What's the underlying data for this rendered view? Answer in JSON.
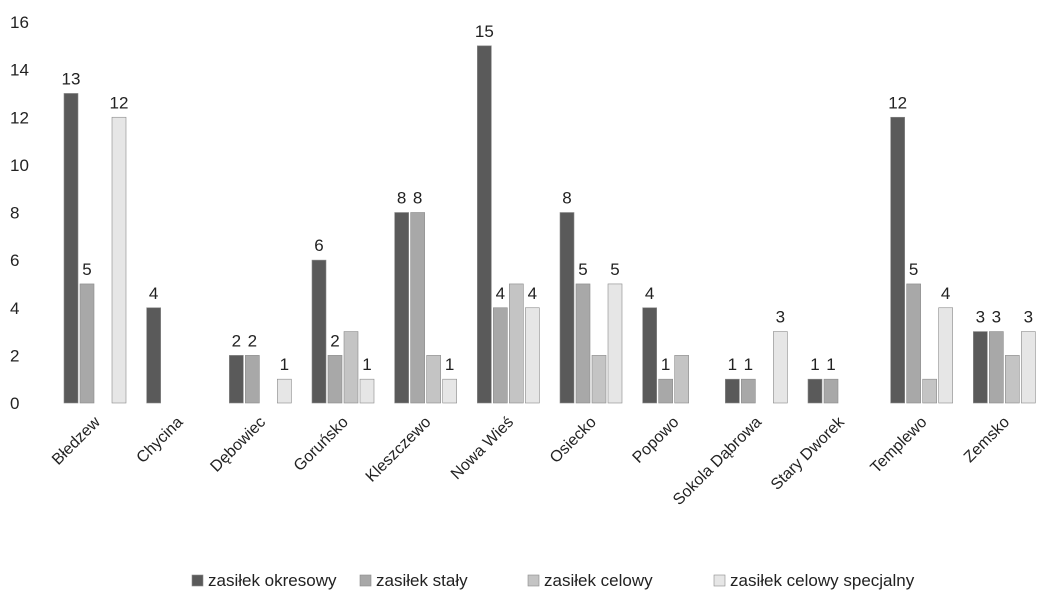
{
  "chart_data": {
    "type": "bar",
    "categories": [
      "Błedzew",
      "Chycina",
      "Dębowiec",
      "Goruńsko",
      "Kleszczewo",
      "Nowa Wieś",
      "Osiecko",
      "Popowo",
      "Sokola Dąbrowa",
      "Stary Dworek",
      "Templewo",
      "Zemsko"
    ],
    "series": [
      {
        "name": "zasiłek okresowy",
        "color": "#5a5a5a",
        "values": [
          13,
          4,
          2,
          6,
          8,
          15,
          8,
          4,
          1,
          1,
          12,
          3
        ],
        "labels": [
          "13",
          "4",
          "2",
          "6",
          "8",
          "15",
          "8",
          "4",
          "1",
          "1",
          "12",
          "3"
        ]
      },
      {
        "name": "zasiłek stały",
        "color": "#a8a8a8",
        "values": [
          5,
          0,
          2,
          2,
          8,
          4,
          5,
          1,
          1,
          1,
          5,
          3
        ],
        "labels": [
          "5",
          "",
          "2",
          "2",
          "8",
          "4",
          "5",
          "1",
          "1",
          "1",
          "5",
          "3"
        ]
      },
      {
        "name": "zasiłek celowy",
        "color": "#c4c4c4",
        "values": [
          0,
          0,
          0,
          3,
          2,
          5,
          2,
          2,
          0,
          0,
          1,
          2
        ],
        "labels": [
          "",
          "",
          "",
          "",
          "",
          "",
          "",
          "",
          "",
          "",
          "",
          ""
        ]
      },
      {
        "name": "zasiłek celowy specjalny",
        "color": "#e6e6e6",
        "values": [
          12,
          0,
          1,
          1,
          1,
          4,
          5,
          0,
          3,
          0,
          4,
          3
        ],
        "labels": [
          "12",
          "",
          "1",
          "1",
          "1",
          "4",
          "5",
          "",
          "3",
          "",
          "4",
          "3"
        ]
      }
    ],
    "y_ticks": [
      "0",
      "2",
      "4",
      "6",
      "8",
      "10",
      "12",
      "14",
      "16"
    ],
    "ylim": [
      0,
      16
    ],
    "grid": false,
    "legend_position": "bottom"
  }
}
